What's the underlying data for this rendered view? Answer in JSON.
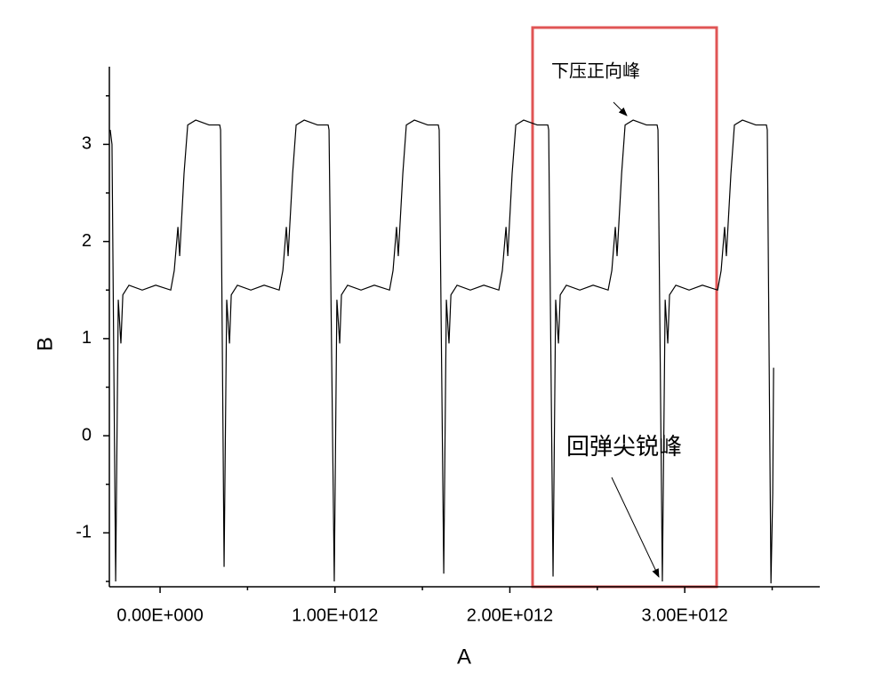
{
  "chart_data": {
    "type": "line",
    "color": "#000000",
    "xlabel": "A",
    "ylabel": "B",
    "xlim": [
      -290000000000.0,
      3772000000000.0
    ],
    "ylim": [
      -1.555,
      3.8
    ],
    "xticks": [
      {
        "value": 0,
        "label": "0.00E+000"
      },
      {
        "value": 1000000000000.0,
        "label": "1.00E+012"
      },
      {
        "value": 2000000000000.0,
        "label": "2.00E+012"
      },
      {
        "value": 3000000000000.0,
        "label": "3.00E+012"
      }
    ],
    "yticks": [
      -1,
      0,
      1,
      2,
      3
    ],
    "xminorticks": [
      500000000000.0,
      1500000000000.0,
      2500000000000.0,
      3500000000000.0
    ],
    "yminorticks": [
      -1.5,
      -0.5,
      0.5,
      1.5,
      2.5,
      3.5
    ],
    "annotations": [
      "下压正向峰",
      "回弹尖锐峰"
    ],
    "x": [
      -285000000000.0,
      -275000000000.0,
      -254000000000.0,
      -239000000000.0,
      -224000000000.0,
      -213000000000.0,
      -178000000000.0,
      -102000000000.0,
      -25000000000.0,
      61000000000.0,
      81000000000.0,
      102000000000.0,
      112000000000.0,
      137000000000.0,
      158000000000.0,
      204000000000.0,
      280000000000.0,
      341000000000.0,
      346000000000.0,
      366000000000.0,
      381000000000.0,
      397000000000.0,
      407000000000.0,
      442000000000.0,
      519000000000.0,
      595000000000.0,
      681000000000.0,
      702000000000.0,
      722000000000.0,
      732000000000.0,
      758000000000.0,
      778000000000.0,
      824000000000.0,
      900000000000.0,
      961000000000.0,
      966000000000.0,
      996000000000.0,
      1011000000000.0,
      1027000000000.0,
      1037000000000.0,
      1072000000000.0,
      1149000000000.0,
      1225000000000.0,
      1312000000000.0,
      1332000000000.0,
      1352000000000.0,
      1362000000000.0,
      1388000000000.0,
      1408000000000.0,
      1454000000000.0,
      1530000000000.0,
      1591000000000.0,
      1596000000000.0,
      1622000000000.0,
      1637000000000.0,
      1652000000000.0,
      1663000000000.0,
      1698000000000.0,
      1774000000000.0,
      1851000000000.0,
      1937000000000.0,
      1957000000000.0,
      1978000000000.0,
      1988000000000.0,
      2013000000000.0,
      2034000000000.0,
      2079000000000.0,
      2156000000000.0,
      2217000000000.0,
      2222000000000.0,
      2247000000000.0,
      2262000000000.0,
      2278000000000.0,
      2288000000000.0,
      2323000000000.0,
      2400000000000.0,
      2476000000000.0,
      2562000000000.0,
      2583000000000.0,
      2603000000000.0,
      2613000000000.0,
      2639000000000.0,
      2659000000000.0,
      2705000000000.0,
      2781000000000.0,
      2842000000000.0,
      2847000000000.0,
      2872000000000.0,
      2888000000000.0,
      2903000000000.0,
      2913000000000.0,
      2949000000000.0,
      3025000000000.0,
      3101000000000.0,
      3188000000000.0,
      3208000000000.0,
      3228000000000.0,
      3238000000000.0,
      3264000000000.0,
      3284000000000.0,
      3330000000000.0,
      3406000000000.0,
      3467000000000.0,
      3472000000000.0,
      3493000000000.0,
      3503000000000.0,
      3508000000000.0
    ],
    "values": [
      3.15,
      3.0,
      -1.5,
      1.4,
      0.95,
      1.45,
      1.55,
      1.5,
      1.55,
      1.5,
      1.7,
      2.15,
      1.85,
      2.7,
      3.2,
      3.25,
      3.2,
      3.2,
      3.15,
      -1.35,
      1.4,
      0.95,
      1.45,
      1.55,
      1.5,
      1.55,
      1.5,
      1.7,
      2.15,
      1.85,
      2.7,
      3.2,
      3.25,
      3.2,
      3.2,
      3.15,
      -1.5,
      1.4,
      0.95,
      1.45,
      1.55,
      1.5,
      1.55,
      1.5,
      1.7,
      2.15,
      1.85,
      2.7,
      3.2,
      3.25,
      3.2,
      3.2,
      3.15,
      -1.42,
      1.4,
      0.95,
      1.45,
      1.55,
      1.5,
      1.55,
      1.5,
      1.7,
      2.15,
      1.85,
      2.7,
      3.2,
      3.25,
      3.2,
      3.2,
      3.15,
      -1.45,
      1.4,
      0.95,
      1.45,
      1.55,
      1.5,
      1.55,
      1.5,
      1.7,
      2.15,
      1.85,
      2.7,
      3.2,
      3.25,
      3.2,
      3.2,
      3.15,
      -1.5,
      1.4,
      0.95,
      1.45,
      1.55,
      1.5,
      1.55,
      1.5,
      1.7,
      2.15,
      1.85,
      2.7,
      3.2,
      3.25,
      3.2,
      3.2,
      3.15,
      -1.52,
      -0.6,
      0.7
    ]
  }
}
